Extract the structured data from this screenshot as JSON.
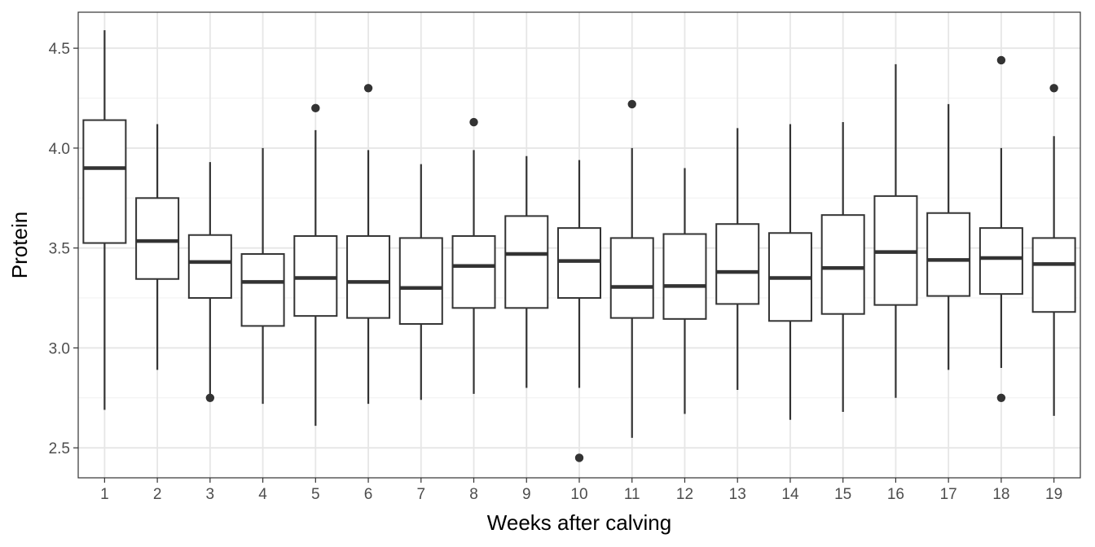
{
  "chart_data": {
    "type": "box",
    "title": "",
    "xlabel": "Weeks after calving",
    "ylabel": "Protein",
    "ylim": [
      2.35,
      4.68
    ],
    "yticks": [
      2.5,
      3.0,
      3.5,
      4.0,
      4.5
    ],
    "ytick_labels": [
      "2.5",
      "3.0",
      "3.5",
      "4.0",
      "4.5"
    ],
    "grid": true,
    "categories": [
      "1",
      "2",
      "3",
      "4",
      "5",
      "6",
      "7",
      "8",
      "9",
      "10",
      "11",
      "12",
      "13",
      "14",
      "15",
      "16",
      "17",
      "18",
      "19"
    ],
    "boxes": [
      {
        "category": "1",
        "whisker_low": 2.69,
        "q1": 3.525,
        "median": 3.9,
        "q3": 4.14,
        "whisker_high": 4.59,
        "outliers": []
      },
      {
        "category": "2",
        "whisker_low": 2.89,
        "q1": 3.345,
        "median": 3.535,
        "q3": 3.75,
        "whisker_high": 4.12,
        "outliers": []
      },
      {
        "category": "3",
        "whisker_low": 2.75,
        "q1": 3.25,
        "median": 3.43,
        "q3": 3.565,
        "whisker_high": 3.93,
        "outliers": [
          2.75
        ]
      },
      {
        "category": "4",
        "whisker_low": 2.72,
        "q1": 3.11,
        "median": 3.33,
        "q3": 3.47,
        "whisker_high": 4.0,
        "outliers": []
      },
      {
        "category": "5",
        "whisker_low": 2.61,
        "q1": 3.16,
        "median": 3.35,
        "q3": 3.56,
        "whisker_high": 4.09,
        "outliers": [
          4.2
        ]
      },
      {
        "category": "6",
        "whisker_low": 2.72,
        "q1": 3.15,
        "median": 3.33,
        "q3": 3.56,
        "whisker_high": 3.99,
        "outliers": [
          4.3
        ]
      },
      {
        "category": "7",
        "whisker_low": 2.74,
        "q1": 3.12,
        "median": 3.3,
        "q3": 3.55,
        "whisker_high": 3.92,
        "outliers": []
      },
      {
        "category": "8",
        "whisker_low": 2.77,
        "q1": 3.2,
        "median": 3.41,
        "q3": 3.56,
        "whisker_high": 3.99,
        "outliers": [
          4.13
        ]
      },
      {
        "category": "9",
        "whisker_low": 2.8,
        "q1": 3.2,
        "median": 3.47,
        "q3": 3.66,
        "whisker_high": 3.96,
        "outliers": []
      },
      {
        "category": "10",
        "whisker_low": 2.8,
        "q1": 3.25,
        "median": 3.435,
        "q3": 3.6,
        "whisker_high": 3.94,
        "outliers": [
          2.45
        ]
      },
      {
        "category": "11",
        "whisker_low": 2.55,
        "q1": 3.15,
        "median": 3.305,
        "q3": 3.55,
        "whisker_high": 4.0,
        "outliers": [
          4.22
        ]
      },
      {
        "category": "12",
        "whisker_low": 2.67,
        "q1": 3.145,
        "median": 3.31,
        "q3": 3.57,
        "whisker_high": 3.9,
        "outliers": []
      },
      {
        "category": "13",
        "whisker_low": 2.79,
        "q1": 3.22,
        "median": 3.38,
        "q3": 3.62,
        "whisker_high": 4.1,
        "outliers": []
      },
      {
        "category": "14",
        "whisker_low": 2.64,
        "q1": 3.135,
        "median": 3.35,
        "q3": 3.575,
        "whisker_high": 4.12,
        "outliers": []
      },
      {
        "category": "15",
        "whisker_low": 2.68,
        "q1": 3.17,
        "median": 3.4,
        "q3": 3.665,
        "whisker_high": 4.13,
        "outliers": []
      },
      {
        "category": "16",
        "whisker_low": 2.75,
        "q1": 3.215,
        "median": 3.48,
        "q3": 3.76,
        "whisker_high": 4.42,
        "outliers": []
      },
      {
        "category": "17",
        "whisker_low": 2.89,
        "q1": 3.26,
        "median": 3.44,
        "q3": 3.675,
        "whisker_high": 4.22,
        "outliers": []
      },
      {
        "category": "18",
        "whisker_low": 2.9,
        "q1": 3.27,
        "median": 3.45,
        "q3": 3.6,
        "whisker_high": 4.0,
        "outliers": [
          4.44,
          2.75
        ]
      },
      {
        "category": "19",
        "whisker_low": 2.66,
        "q1": 3.18,
        "median": 3.42,
        "q3": 3.55,
        "whisker_high": 4.06,
        "outliers": [
          4.3
        ]
      }
    ]
  }
}
